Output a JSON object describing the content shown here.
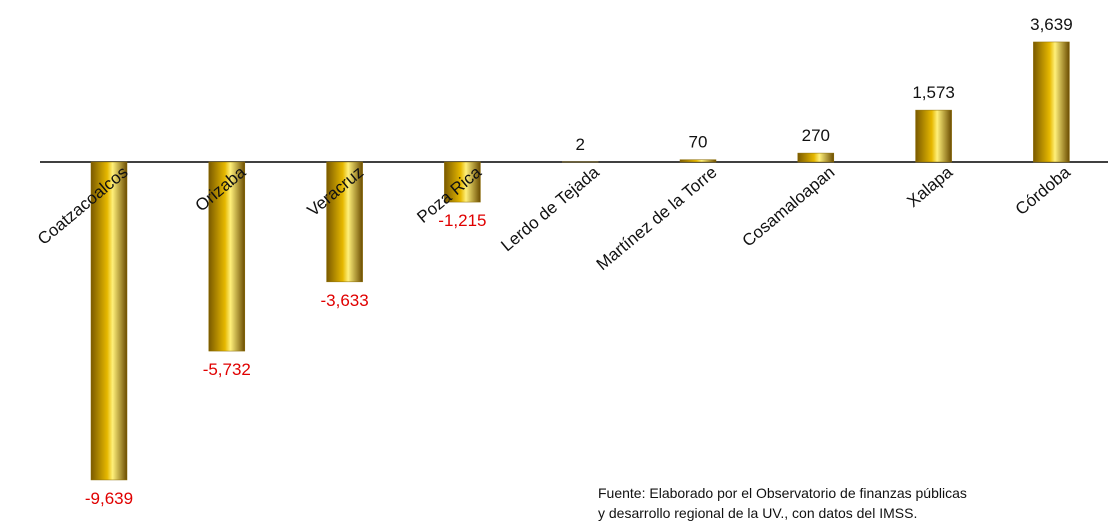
{
  "chart_data": {
    "type": "bar",
    "categories": [
      "Coatzacoalcos",
      "Orizaba",
      "Veracruz",
      "Poza Rica",
      "Lerdo de Tejada",
      "Martínez de la Torre",
      "Cosamaloapan",
      "Xalapa",
      "Córdoba"
    ],
    "values": [
      -9639,
      -5732,
      -3633,
      -1215,
      2,
      70,
      270,
      1573,
      3639
    ],
    "value_labels": [
      "-9,639",
      "-5,732",
      "-3,633",
      "-1,215",
      "2",
      "70",
      "270",
      "1,573",
      "3,639"
    ],
    "color": "#e6b800",
    "negative_label_color": "#e00000",
    "source": [
      "Fuente: Elaborado por el Observatorio de finanzas públicas",
      "y desarrollo regional de la UV., con datos del IMSS."
    ]
  }
}
